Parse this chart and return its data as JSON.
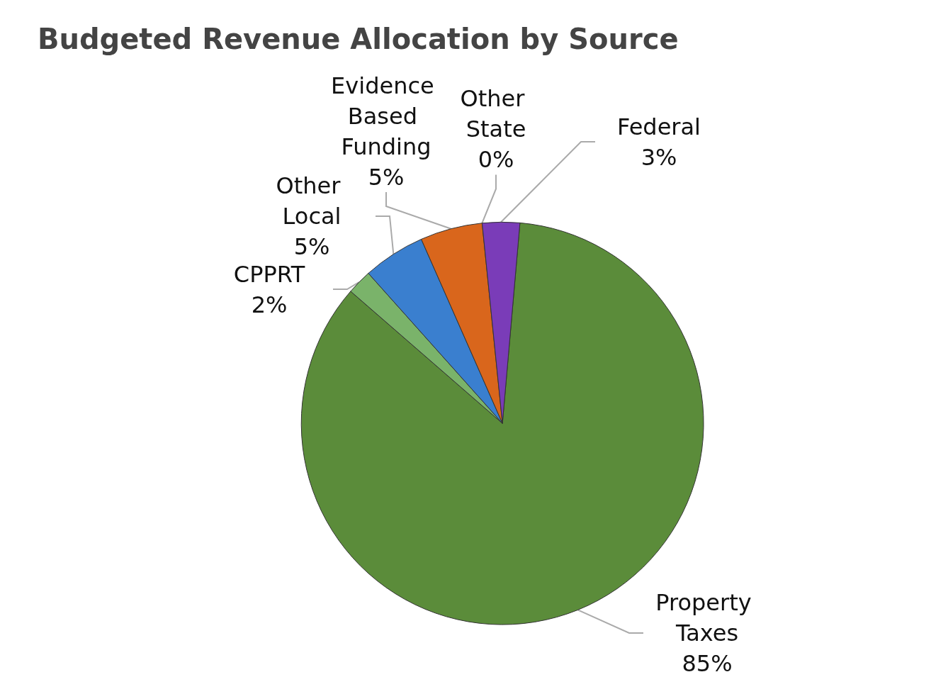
{
  "chart_data": {
    "type": "pie",
    "title": "Budgeted Revenue Allocation by Source",
    "categories": [
      "Property Taxes",
      "CPPRT",
      "Other Local",
      "Evidence Based Funding",
      "Other State",
      "Federal"
    ],
    "values": [
      85,
      2,
      5,
      5,
      0,
      3
    ],
    "value_labels": [
      "85%",
      "2%",
      "5%",
      "5%",
      "0%",
      "3%"
    ],
    "colors": [
      "#5b8c3a",
      "#7ab36a",
      "#3a7fcf",
      "#d9661c",
      "#e0b020",
      "#7a3cb8"
    ],
    "legend": false
  }
}
